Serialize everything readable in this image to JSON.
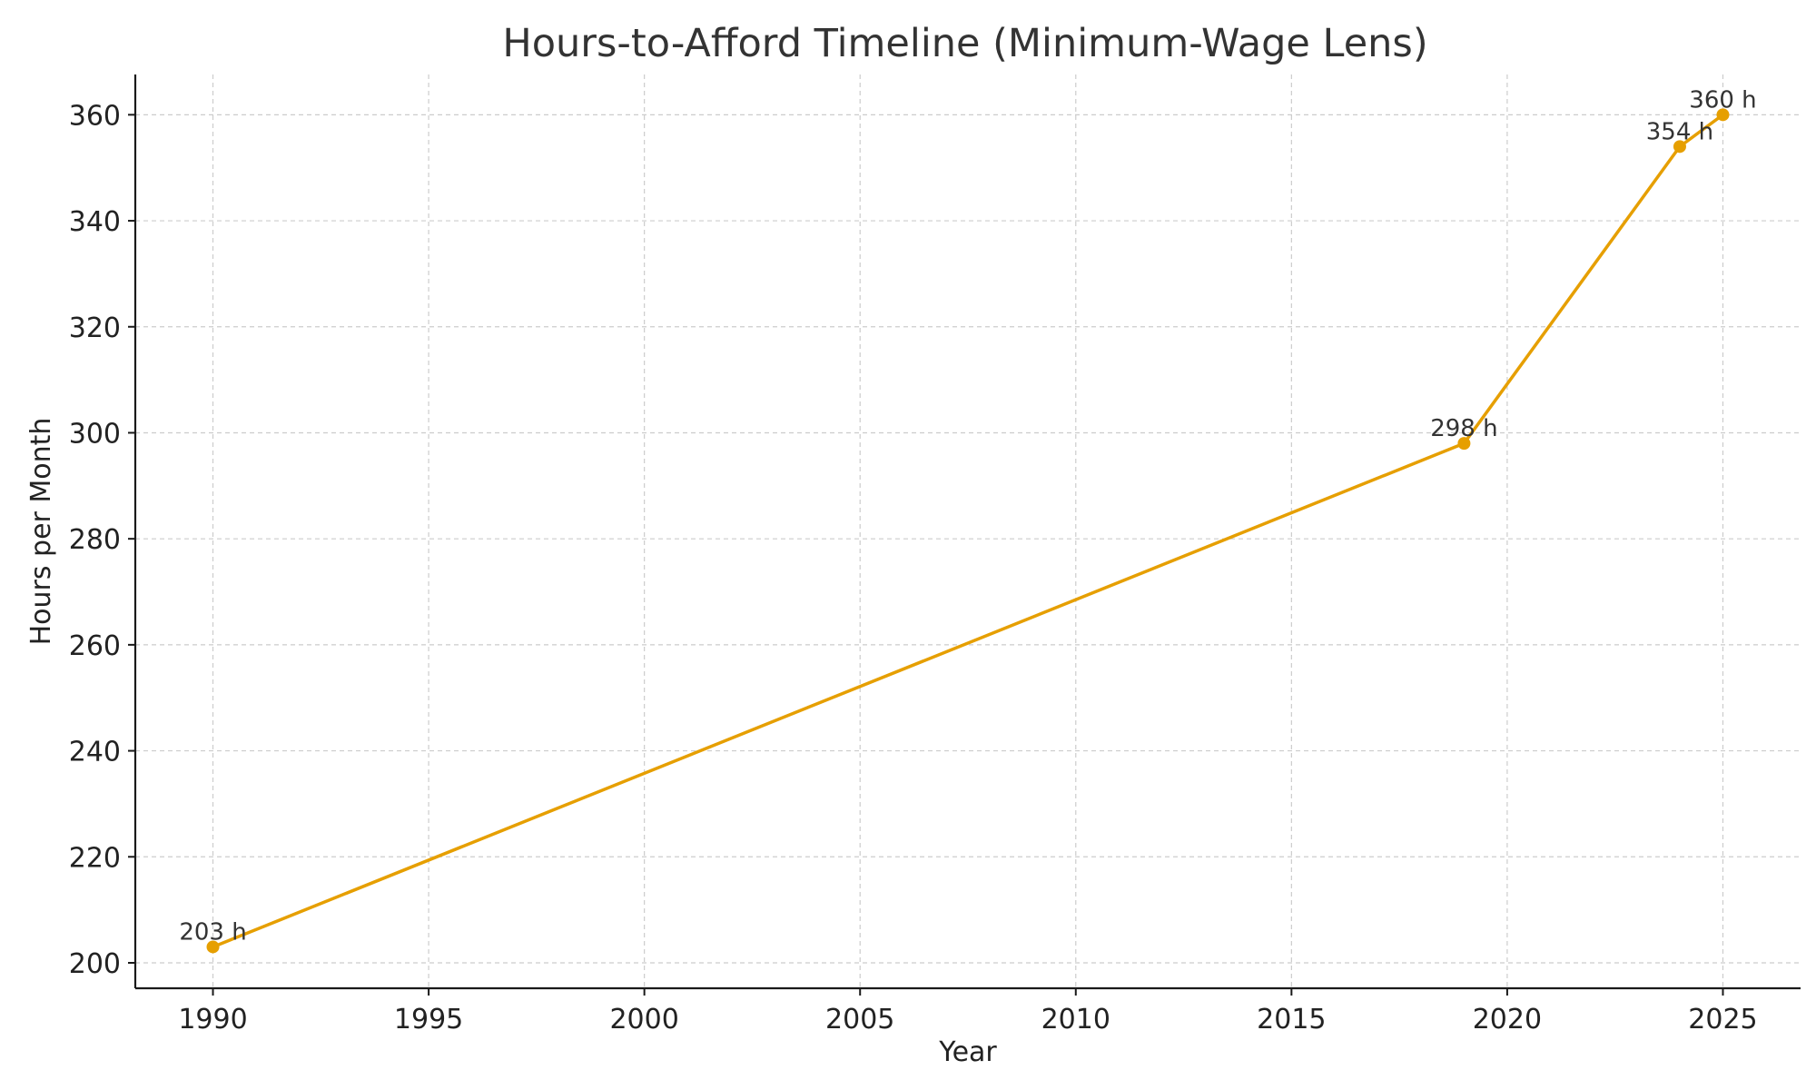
{
  "chart_data": {
    "type": "line",
    "title": "Hours-to-Afford Timeline (Minimum-Wage Lens)",
    "xlabel": "Year",
    "ylabel": "Hours per Month",
    "xlim": [
      1988.2,
      2026.8
    ],
    "ylim": [
      195.2,
      367.6
    ],
    "xticks": [
      1990,
      1995,
      2000,
      2005,
      2010,
      2015,
      2020,
      2025
    ],
    "yticks": [
      200,
      220,
      240,
      260,
      280,
      300,
      320,
      340,
      360
    ],
    "grid": true,
    "line_color": "#E69F00",
    "series": [
      {
        "x": [
          1990,
          2019,
          2024,
          2025
        ],
        "y": [
          203,
          298,
          354,
          360
        ],
        "labels": [
          "203 h",
          "298 h",
          "354 h",
          "360 h"
        ]
      }
    ]
  }
}
